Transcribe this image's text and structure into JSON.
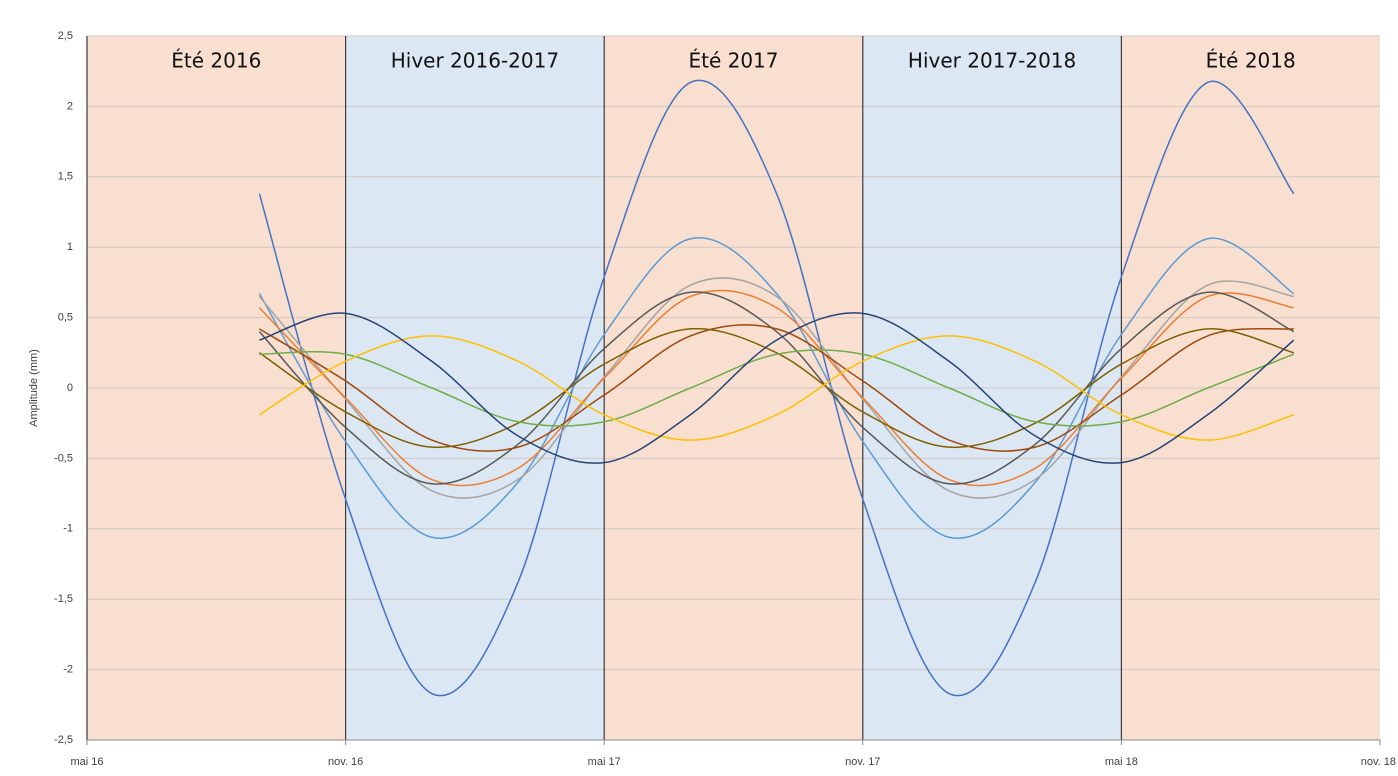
{
  "chart_data": {
    "type": "line",
    "y_label": "Amplitude (mm)",
    "x": [
      "2016-09",
      "2016-11",
      "2017-01",
      "2017-03",
      "2017-05",
      "2017-07",
      "2017-09",
      "2017-11",
      "2018-01",
      "2018-03",
      "2018-05",
      "2018-07",
      "2018-09"
    ],
    "xlim": [
      "2016-05",
      "2018-11"
    ],
    "xticks": [
      {
        "value": "2016-05",
        "label": "mai 16"
      },
      {
        "value": "2016-11",
        "label": "nov. 16"
      },
      {
        "value": "2017-05",
        "label": "mai 17"
      },
      {
        "value": "2017-11",
        "label": "nov. 17"
      },
      {
        "value": "2018-05",
        "label": "mai 18"
      },
      {
        "value": "2018-11",
        "label": "nov. 18"
      }
    ],
    "ylim": [
      -2.5,
      2.5
    ],
    "yticks": [
      {
        "value": 2.5,
        "label": "2,5"
      },
      2,
      {
        "value": 1.5,
        "label": "1,5"
      },
      1,
      {
        "value": 0.5,
        "label": "0,5"
      },
      0,
      {
        "value": -0.5,
        "label": "-0,5"
      },
      -1,
      {
        "value": -1.5,
        "label": "-1,5"
      },
      -2,
      {
        "value": -2.5,
        "label": "-2,5"
      }
    ],
    "grid": true,
    "seasons": [
      {
        "label": "Été 2016",
        "start": "2016-05",
        "end": "2016-11",
        "color": "#f9dfd0"
      },
      {
        "label": "Hiver 2016-2017",
        "start": "2016-11",
        "end": "2017-05",
        "color": "#dce7f4"
      },
      {
        "label": "Été 2017",
        "start": "2017-05",
        "end": "2017-11",
        "color": "#f9dfd0"
      },
      {
        "label": "Hiver 2017-2018",
        "start": "2017-11",
        "end": "2018-05",
        "color": "#dce7f4"
      },
      {
        "label": "Été 2018",
        "start": "2018-05",
        "end": "2018-11",
        "color": "#f9dfd0"
      }
    ],
    "series": [
      {
        "color": "#4472c4",
        "values": [
          1.38,
          -0.79,
          -2.17,
          -1.38,
          0.79,
          2.17,
          1.38,
          -0.79,
          -2.17,
          -1.38,
          0.79,
          2.17,
          1.38
        ]
      },
      {
        "color": "#5b9bd5",
        "values": [
          0.67,
          -0.38,
          -1.06,
          -0.67,
          0.38,
          1.06,
          0.67,
          -0.38,
          -1.06,
          -0.67,
          0.38,
          1.06,
          0.67
        ]
      },
      {
        "color": "#a5a5a5",
        "values": [
          0.65,
          -0.08,
          -0.73,
          -0.65,
          0.08,
          0.73,
          0.65,
          -0.08,
          -0.73,
          -0.65,
          0.08,
          0.73,
          0.65
        ]
      },
      {
        "color": "#ed7d31",
        "values": [
          0.57,
          -0.07,
          -0.65,
          -0.57,
          0.07,
          0.65,
          0.57,
          -0.07,
          -0.65,
          -0.57,
          0.07,
          0.65,
          0.57
        ]
      },
      {
        "color": "#595959",
        "values": [
          0.4,
          -0.28,
          -0.68,
          -0.4,
          0.28,
          0.68,
          0.4,
          -0.28,
          -0.68,
          -0.4,
          0.28,
          0.68,
          0.4
        ]
      },
      {
        "color": "#9e480e",
        "values": [
          0.42,
          0.05,
          -0.37,
          -0.42,
          -0.05,
          0.37,
          0.42,
          0.05,
          -0.37,
          -0.42,
          -0.05,
          0.37,
          0.42
        ]
      },
      {
        "color": "#7f6000",
        "values": [
          0.25,
          -0.17,
          -0.42,
          -0.25,
          0.17,
          0.42,
          0.25,
          -0.17,
          -0.42,
          -0.25,
          0.17,
          0.42,
          0.25
        ]
      },
      {
        "color": "#70ad47",
        "values": [
          0.24,
          0.24,
          0,
          -0.24,
          -0.24,
          0,
          0.24,
          0.24,
          0,
          -0.24,
          -0.24,
          0,
          0.24
        ]
      },
      {
        "color": "#ffc000",
        "values": [
          -0.19,
          0.19,
          0.37,
          0.19,
          -0.19,
          -0.37,
          -0.19,
          0.19,
          0.37,
          0.19,
          -0.19,
          -0.37,
          -0.19
        ]
      },
      {
        "color": "#264478",
        "values": [
          0.34,
          0.53,
          0.19,
          -0.34,
          -0.53,
          -0.19,
          0.34,
          0.53,
          0.19,
          -0.34,
          -0.53,
          -0.19,
          0.34
        ]
      }
    ]
  }
}
